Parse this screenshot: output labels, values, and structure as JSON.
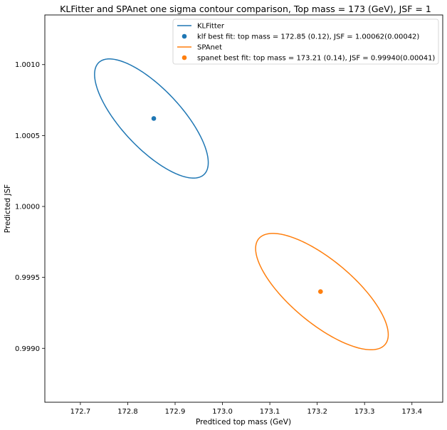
{
  "chart_data": {
    "type": "scatter",
    "title": "KLFitter and SPAnet one sigma contour comparison, Top mass = 173 (GeV), JSF = 1",
    "xlabel": "Predticed top mass (GeV)",
    "ylabel": "Predicted JSF",
    "xlim": [
      172.625,
      173.465
    ],
    "ylim": [
      0.99862,
      1.00135
    ],
    "xticks": [
      172.7,
      172.8,
      172.9,
      173.0,
      173.1,
      173.2,
      173.3,
      173.4
    ],
    "xtick_labels": [
      "172.7",
      "172.8",
      "172.9",
      "173.0",
      "173.1",
      "173.2",
      "173.3",
      "173.4"
    ],
    "yticks": [
      0.999,
      0.9995,
      1.0,
      1.0005,
      1.001
    ],
    "ytick_labels": [
      "0.9990",
      "0.9995",
      "1.0000",
      "1.0005",
      "1.0010"
    ],
    "grid": false,
    "legend_position": "top-right",
    "series": [
      {
        "name": "KLFitter",
        "kind": "contour",
        "color": "#1f77b4",
        "center": [
          172.85,
          1.00062
        ],
        "sigma": [
          0.12,
          0.00042
        ],
        "correlation": -0.74
      },
      {
        "name": "klf best fit: top mass = 172.85 (0.12),  JSF = 1.00062(0.00042)",
        "kind": "point",
        "color": "#1f77b4",
        "x": 172.855,
        "y": 1.00062
      },
      {
        "name": "SPAnet",
        "kind": "contour",
        "color": "#ff7f0e",
        "center": [
          173.21,
          0.9994
        ],
        "sigma": [
          0.14,
          0.00041
        ],
        "correlation": -0.74
      },
      {
        "name": "spanet best fit: top mass = 173.21 (0.14),  JSF = 0.99940(0.00041)",
        "kind": "point",
        "color": "#ff7f0e",
        "x": 173.207,
        "y": 0.9994
      }
    ]
  }
}
